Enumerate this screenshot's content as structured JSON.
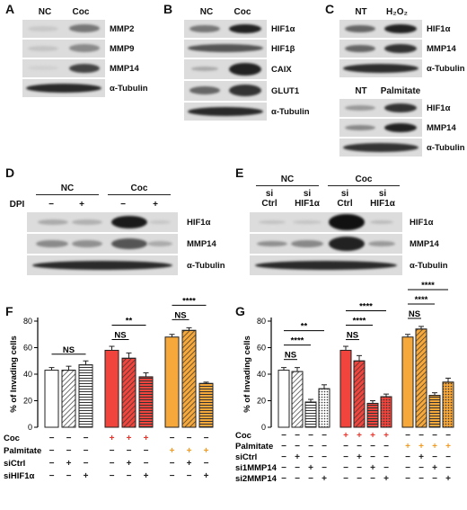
{
  "panels": {
    "A": {
      "label": "A",
      "cols": [
        "NC",
        "Coc"
      ],
      "rows": [
        "MMP2",
        "MMP9",
        "MMP14",
        "α-Tubulin"
      ]
    },
    "B": {
      "label": "B",
      "cols": [
        "NC",
        "Coc"
      ],
      "rows": [
        "HIF1α",
        "HIF1β",
        "CAIX",
        "GLUT1",
        "α-Tubulin"
      ]
    },
    "C": {
      "label": "C",
      "top_cols": [
        "NT",
        "H₂O₂"
      ],
      "bottom_cols": [
        "NT",
        "Palmitate"
      ],
      "rows": [
        "HIF1α",
        "MMP14",
        "α-Tubulin"
      ]
    },
    "D": {
      "label": "D",
      "group": [
        "NC",
        "Coc"
      ],
      "dpi_label": "DPI",
      "dpi": [
        "−",
        "+",
        "−",
        "+"
      ],
      "rows": [
        "HIF1α",
        "MMP14",
        "α-Tubulin"
      ]
    },
    "E": {
      "label": "E",
      "group": [
        "NC",
        "Coc"
      ],
      "lanes": [
        "si\nCtrl",
        "si\nHIF1α",
        "si\nCtrl",
        "si\nHIF1α"
      ],
      "rows": [
        "HIF1α",
        "MMP14",
        "α-Tubulin"
      ]
    },
    "F": {
      "label": "F",
      "ylabel": "% of Invading cells",
      "yticks": [
        "0",
        "20",
        "40",
        "60",
        "80"
      ],
      "rowlabels": [
        "Coc",
        "Palmitate",
        "siCtrl",
        "siHIF1α"
      ]
    },
    "G": {
      "label": "G",
      "ylabel": "% of Invading cells",
      "yticks": [
        "0",
        "20",
        "40",
        "60",
        "80"
      ],
      "rowlabels": [
        "Coc",
        "Palmitate",
        "siCtrl",
        "si1MMP14",
        "si2MMP14"
      ]
    }
  },
  "chart_data": [
    {
      "type": "bar",
      "panel": "F",
      "ylabel": "% of Invading cells",
      "ylim": [
        0,
        80
      ],
      "categories": [
        "1",
        "2",
        "3",
        "4",
        "5",
        "6",
        "7",
        "8",
        "9"
      ],
      "values": [
        43,
        43,
        47,
        58,
        52,
        38,
        68,
        73,
        33
      ],
      "errors": [
        2,
        3,
        3,
        3,
        4,
        3,
        2,
        2,
        1
      ],
      "patterns": [
        "solid",
        "diag",
        "hatch",
        "solid",
        "diag",
        "hatch",
        "solid",
        "diag",
        "hatch"
      ],
      "colors": [
        "#ffffff",
        "#ffffff",
        "#ffffff",
        "#f0443c",
        "#f0443c",
        "#f0443c",
        "#f7a83a",
        "#f7a83a",
        "#f7a83a"
      ],
      "table": {
        "Coc": [
          "−",
          "−",
          "−",
          "+",
          "+",
          "+",
          "−",
          "−",
          "−"
        ],
        "Palmitate": [
          "−",
          "−",
          "−",
          "−",
          "−",
          "−",
          "+",
          "+",
          "+"
        ],
        "siCtrl": [
          "−",
          "+",
          "−",
          "−",
          "+",
          "−",
          "−",
          "+",
          "−"
        ],
        "siHIF1α": [
          "−",
          "−",
          "+",
          "−",
          "−",
          "+",
          "−",
          "−",
          "+"
        ]
      },
      "significance": [
        {
          "from": 1,
          "to": 3,
          "text": "NS",
          "level": 1
        },
        {
          "from": 4,
          "to": 5,
          "text": "NS",
          "level": 1
        },
        {
          "from": 4,
          "to": 6,
          "text": "**",
          "level": 2
        },
        {
          "from": 7,
          "to": 8,
          "text": "NS",
          "level": 1
        },
        {
          "from": 7,
          "to": 9,
          "text": "****",
          "level": 2
        }
      ]
    },
    {
      "type": "bar",
      "panel": "G",
      "ylabel": "% of Invading cells",
      "ylim": [
        0,
        80
      ],
      "categories": [
        "1",
        "2",
        "3",
        "4",
        "5",
        "6",
        "7",
        "8",
        "9",
        "10",
        "11",
        "12"
      ],
      "values": [
        43,
        42,
        19,
        29,
        58,
        50,
        18,
        23,
        68,
        74,
        24,
        34
      ],
      "errors": [
        2,
        3,
        2,
        3,
        3,
        4,
        2,
        2,
        2,
        2,
        2,
        3
      ],
      "patterns": [
        "solid",
        "diag",
        "hatch",
        "dots",
        "solid",
        "diag",
        "hatch",
        "dots",
        "solid",
        "diag",
        "hatch",
        "dots"
      ],
      "colors": [
        "#ffffff",
        "#ffffff",
        "#ffffff",
        "#ffffff",
        "#f0443c",
        "#f0443c",
        "#f0443c",
        "#f0443c",
        "#f7a83a",
        "#f7a83a",
        "#f7a83a",
        "#f7a83a"
      ],
      "table": {
        "Coc": [
          "−",
          "−",
          "−",
          "−",
          "+",
          "+",
          "+",
          "+",
          "−",
          "−",
          "−",
          "−"
        ],
        "Palmitate": [
          "−",
          "−",
          "−",
          "−",
          "−",
          "−",
          "−",
          "−",
          "+",
          "+",
          "+",
          "+"
        ],
        "siCtrl": [
          "−",
          "+",
          "−",
          "−",
          "−",
          "+",
          "−",
          "−",
          "−",
          "+",
          "−",
          "−"
        ],
        "si1MMP14": [
          "−",
          "−",
          "+",
          "−",
          "−",
          "−",
          "+",
          "−",
          "−",
          "−",
          "+",
          "−"
        ],
        "si2MMP14": [
          "−",
          "−",
          "−",
          "+",
          "−",
          "−",
          "−",
          "+",
          "−",
          "−",
          "−",
          "+"
        ]
      },
      "significance": [
        {
          "from": 1,
          "to": 2,
          "text": "NS",
          "level": 1
        },
        {
          "from": 1,
          "to": 3,
          "text": "****",
          "level": 2
        },
        {
          "from": 1,
          "to": 4,
          "text": "**",
          "level": 3
        },
        {
          "from": 5,
          "to": 6,
          "text": "NS",
          "level": 1
        },
        {
          "from": 5,
          "to": 7,
          "text": "****",
          "level": 2
        },
        {
          "from": 5,
          "to": 8,
          "text": "****",
          "level": 3
        },
        {
          "from": 9,
          "to": 10,
          "text": "NS",
          "level": 1
        },
        {
          "from": 9,
          "to": 11,
          "text": "****",
          "level": 2
        },
        {
          "from": 9,
          "to": 12,
          "text": "****",
          "level": 3
        }
      ]
    }
  ]
}
